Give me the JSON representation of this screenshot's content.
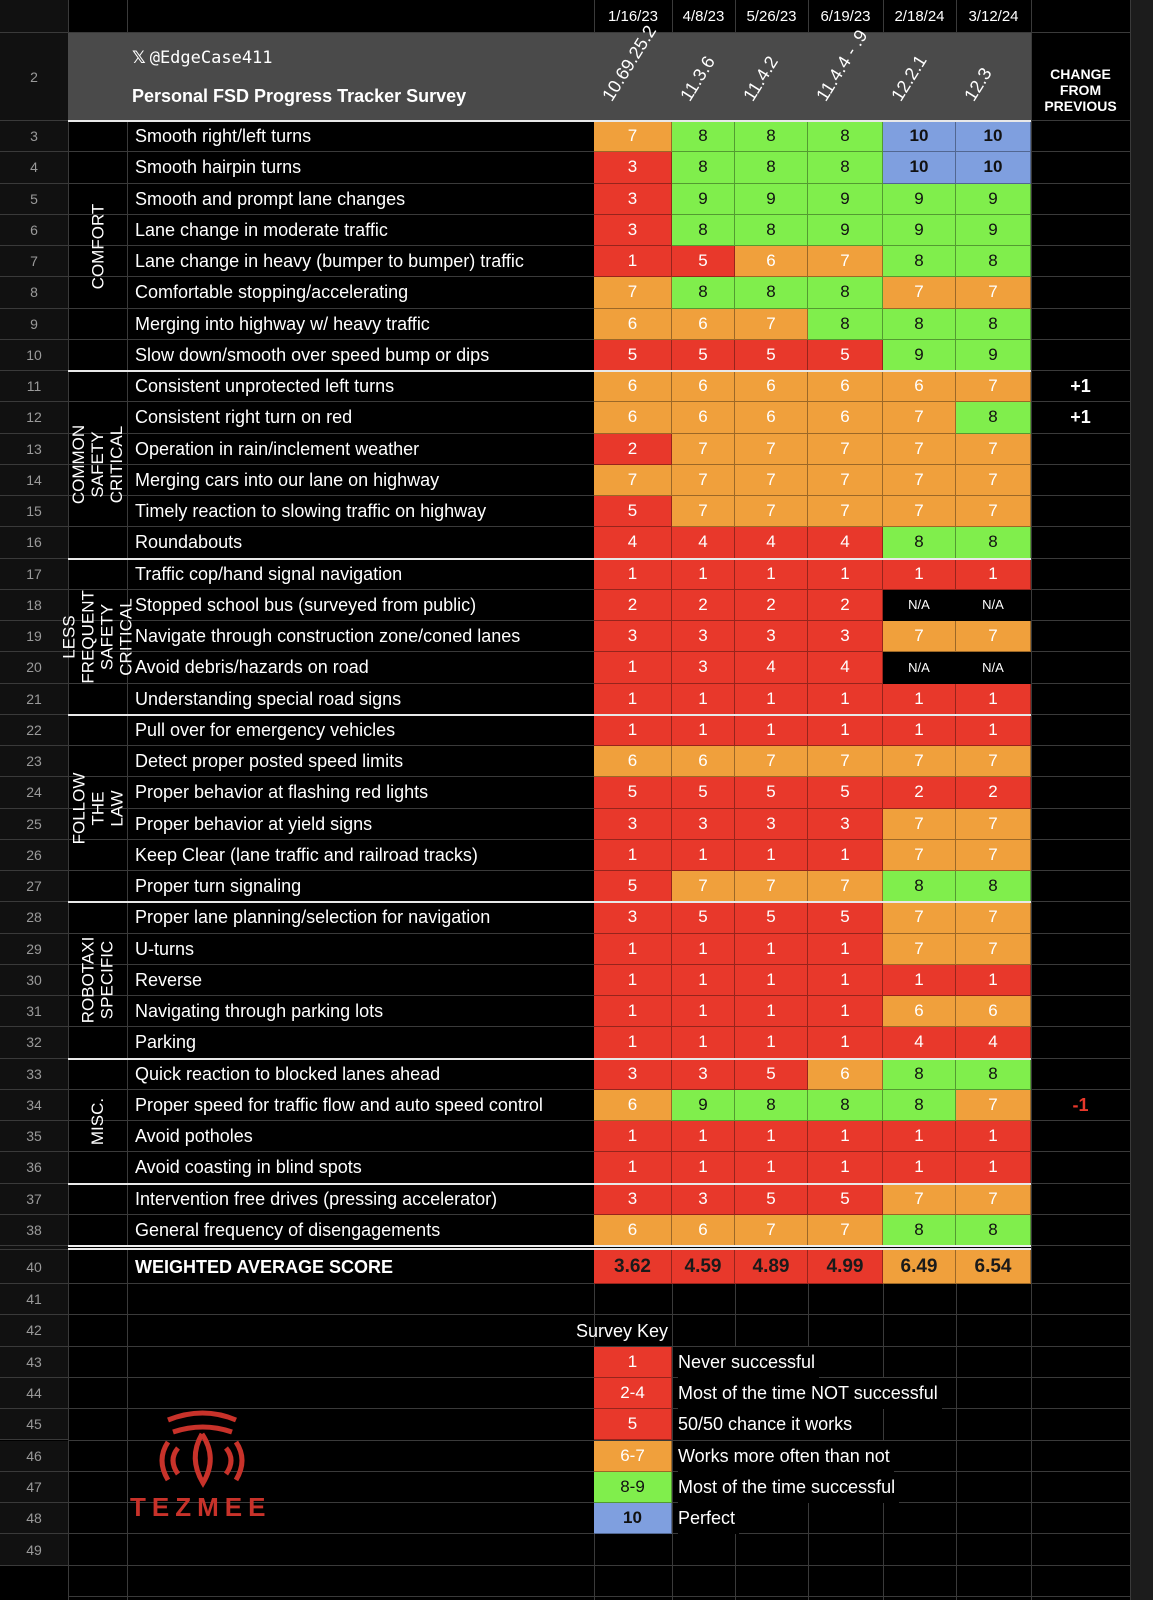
{
  "header": {
    "handle": "@EdgeCase411",
    "title": "Personal FSD Progress Tracker Survey",
    "change_label": "CHANGE FROM PREVIOUS",
    "dates": [
      "1/16/23",
      "4/8/23",
      "5/26/23",
      "6/19/23",
      "2/18/24",
      "3/12/24"
    ],
    "versions": [
      "10.69.25.2",
      "11.3.6",
      "11.4.2",
      "11.4.4 - .9",
      "12.2.1",
      "12.3"
    ]
  },
  "colors": {
    "red": "#e8382b",
    "orange": "#f0a03c",
    "green": "#80ee4c",
    "blue": "#7f9fdf",
    "na": "#000000",
    "grid": "#3a3a3a"
  },
  "categories": [
    {
      "label": "COMFORT",
      "rows": [
        3,
        10
      ]
    },
    {
      "label": "COMMON SAFETY CRITICAL",
      "rows": [
        11,
        16
      ]
    },
    {
      "label": "LESS FREQUENT SAFETY CRITICAL",
      "rows": [
        17,
        21
      ]
    },
    {
      "label": "FOLLOW THE LAW",
      "rows": [
        22,
        27
      ]
    },
    {
      "label": "ROBOTAXI SPECIFIC",
      "rows": [
        28,
        32
      ]
    },
    {
      "label": "MISC.",
      "rows": [
        33,
        36
      ]
    }
  ],
  "rows": [
    {
      "n": "3",
      "label": "Smooth right/left turns",
      "scores": [
        "7",
        "8",
        "8",
        "8",
        "10",
        "10"
      ],
      "change": ""
    },
    {
      "n": "4",
      "label": "Smooth hairpin turns",
      "scores": [
        "3",
        "8",
        "8",
        "8",
        "10",
        "10"
      ],
      "change": ""
    },
    {
      "n": "5",
      "label": "Smooth and prompt lane changes",
      "scores": [
        "3",
        "9",
        "9",
        "9",
        "9",
        "9"
      ],
      "change": ""
    },
    {
      "n": "6",
      "label": "Lane change in moderate traffic",
      "scores": [
        "3",
        "8",
        "8",
        "9",
        "9",
        "9"
      ],
      "change": ""
    },
    {
      "n": "7",
      "label": "Lane change in heavy (bumper to bumper) traffic",
      "scores": [
        "1",
        "5",
        "6",
        "7",
        "8",
        "8"
      ],
      "change": ""
    },
    {
      "n": "8",
      "label": "Comfortable stopping/accelerating",
      "scores": [
        "7",
        "8",
        "8",
        "8",
        "7",
        "7"
      ],
      "change": ""
    },
    {
      "n": "9",
      "label": "Merging into highway w/ heavy traffic",
      "scores": [
        "6",
        "6",
        "7",
        "8",
        "8",
        "8"
      ],
      "change": ""
    },
    {
      "n": "10",
      "label": "Slow down/smooth over speed bump or dips",
      "scores": [
        "5",
        "5",
        "5",
        "5",
        "9",
        "9"
      ],
      "change": ""
    },
    {
      "n": "11",
      "label": "Consistent unprotected left turns",
      "scores": [
        "6",
        "6",
        "6",
        "6",
        "6",
        "7"
      ],
      "change": "+1"
    },
    {
      "n": "12",
      "label": "Consistent right turn on red",
      "scores": [
        "6",
        "6",
        "6",
        "6",
        "7",
        "8"
      ],
      "change": "+1"
    },
    {
      "n": "13",
      "label": "Operation in rain/inclement weather",
      "scores": [
        "2",
        "7",
        "7",
        "7",
        "7",
        "7"
      ],
      "change": ""
    },
    {
      "n": "14",
      "label": "Merging cars into our lane on highway",
      "scores": [
        "7",
        "7",
        "7",
        "7",
        "7",
        "7"
      ],
      "change": ""
    },
    {
      "n": "15",
      "label": "Timely reaction to slowing traffic on highway",
      "scores": [
        "5",
        "7",
        "7",
        "7",
        "7",
        "7"
      ],
      "change": ""
    },
    {
      "n": "16",
      "label": "Roundabouts",
      "scores": [
        "4",
        "4",
        "4",
        "4",
        "8",
        "8"
      ],
      "change": ""
    },
    {
      "n": "17",
      "label": "Traffic cop/hand signal navigation",
      "scores": [
        "1",
        "1",
        "1",
        "1",
        "1",
        "1"
      ],
      "change": ""
    },
    {
      "n": "18",
      "label": "Stopped school bus (surveyed from public)",
      "scores": [
        "2",
        "2",
        "2",
        "2",
        "N/A",
        "N/A"
      ],
      "change": ""
    },
    {
      "n": "19",
      "label": "Navigate through construction zone/coned lanes",
      "scores": [
        "3",
        "3",
        "3",
        "3",
        "7",
        "7"
      ],
      "change": ""
    },
    {
      "n": "20",
      "label": "Avoid debris/hazards on road",
      "scores": [
        "1",
        "3",
        "4",
        "4",
        "N/A",
        "N/A"
      ],
      "change": ""
    },
    {
      "n": "21",
      "label": "Understanding special road signs",
      "scores": [
        "1",
        "1",
        "1",
        "1",
        "1",
        "1"
      ],
      "change": ""
    },
    {
      "n": "22",
      "label": "Pull over for emergency vehicles",
      "scores": [
        "1",
        "1",
        "1",
        "1",
        "1",
        "1"
      ],
      "change": ""
    },
    {
      "n": "23",
      "label": "Detect proper posted speed limits",
      "scores": [
        "6",
        "6",
        "7",
        "7",
        "7",
        "7"
      ],
      "change": ""
    },
    {
      "n": "24",
      "label": "Proper behavior at flashing red lights",
      "scores": [
        "5",
        "5",
        "5",
        "5",
        "2",
        "2"
      ],
      "change": ""
    },
    {
      "n": "25",
      "label": "Proper behavior at yield signs",
      "scores": [
        "3",
        "3",
        "3",
        "3",
        "7",
        "7"
      ],
      "change": ""
    },
    {
      "n": "26",
      "label": "Keep Clear (lane traffic and railroad tracks)",
      "scores": [
        "1",
        "1",
        "1",
        "1",
        "7",
        "7"
      ],
      "change": ""
    },
    {
      "n": "27",
      "label": "Proper turn signaling",
      "scores": [
        "5",
        "7",
        "7",
        "7",
        "8",
        "8"
      ],
      "change": ""
    },
    {
      "n": "28",
      "label": "Proper lane planning/selection for navigation",
      "scores": [
        "3",
        "5",
        "5",
        "5",
        "7",
        "7"
      ],
      "change": ""
    },
    {
      "n": "29",
      "label": "U-turns",
      "scores": [
        "1",
        "1",
        "1",
        "1",
        "7",
        "7"
      ],
      "change": ""
    },
    {
      "n": "30",
      "label": "Reverse",
      "scores": [
        "1",
        "1",
        "1",
        "1",
        "1",
        "1"
      ],
      "change": ""
    },
    {
      "n": "31",
      "label": "Navigating through parking lots",
      "scores": [
        "1",
        "1",
        "1",
        "1",
        "6",
        "6"
      ],
      "change": ""
    },
    {
      "n": "32",
      "label": "Parking",
      "scores": [
        "1",
        "1",
        "1",
        "1",
        "4",
        "4"
      ],
      "change": ""
    },
    {
      "n": "33",
      "label": "Quick reaction to blocked lanes ahead",
      "scores": [
        "3",
        "3",
        "5",
        "6",
        "8",
        "8"
      ],
      "change": ""
    },
    {
      "n": "34",
      "label": "Proper speed for traffic flow and auto speed control",
      "scores": [
        "6",
        "9",
        "8",
        "8",
        "8",
        "7"
      ],
      "change": "-1"
    },
    {
      "n": "35",
      "label": "Avoid potholes",
      "scores": [
        "1",
        "1",
        "1",
        "1",
        "1",
        "1"
      ],
      "change": ""
    },
    {
      "n": "36",
      "label": "Avoid coasting in blind spots",
      "scores": [
        "1",
        "1",
        "1",
        "1",
        "1",
        "1"
      ],
      "change": ""
    },
    {
      "n": "37",
      "label": "Intervention free drives (pressing accelerator)",
      "scores": [
        "3",
        "3",
        "5",
        "5",
        "7",
        "7"
      ],
      "change": ""
    },
    {
      "n": "38",
      "label": "General frequency of disengagements",
      "scores": [
        "6",
        "6",
        "7",
        "7",
        "8",
        "8"
      ],
      "change": ""
    }
  ],
  "average": {
    "n": "40",
    "label": "WEIGHTED AVERAGE SCORE",
    "values": [
      "3.62",
      "4.59",
      "4.89",
      "4.99",
      "6.49",
      "6.54"
    ]
  },
  "key": {
    "title": "Survey Key",
    "items": [
      {
        "n": "43",
        "score": "1",
        "text": "Never successful",
        "color": "red"
      },
      {
        "n": "44",
        "score": "2-4",
        "text": "Most of the time NOT successful",
        "color": "red"
      },
      {
        "n": "45",
        "score": "5",
        "text": "50/50 chance it works",
        "color": "red"
      },
      {
        "n": "46",
        "score": "6-7",
        "text": "Works more often than not",
        "color": "orange"
      },
      {
        "n": "47",
        "score": "8-9",
        "text": "Most of the time successful",
        "color": "green"
      },
      {
        "n": "48",
        "score": "10",
        "text": "Perfect",
        "color": "blue"
      }
    ]
  },
  "row_numbers": {
    "r2": "2",
    "r41": "41",
    "r42": "42",
    "r49": "49"
  },
  "logo": {
    "text": "TEZMEE",
    "color": "#c8322a"
  }
}
